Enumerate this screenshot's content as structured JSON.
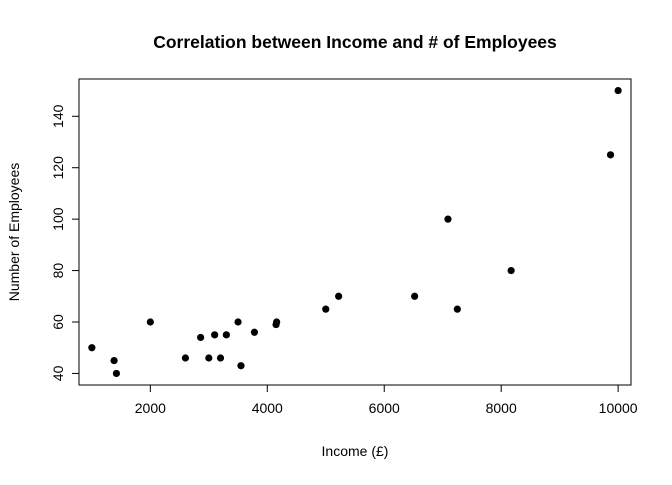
{
  "chart_data": {
    "type": "scatter",
    "title": "Correlation between Income and # of Employees",
    "xlabel": "Income (£)",
    "ylabel": "Number of Employees",
    "xlim": [
      780,
      10220
    ],
    "ylim": [
      35.5,
      154.5
    ],
    "xticks": [
      2000,
      4000,
      6000,
      8000,
      10000
    ],
    "yticks": [
      40,
      60,
      80,
      100,
      120,
      140
    ],
    "grid": false,
    "point_color": "#000000",
    "points": [
      {
        "x": 1000,
        "y": 50
      },
      {
        "x": 1380,
        "y": 45
      },
      {
        "x": 1420,
        "y": 40
      },
      {
        "x": 2000,
        "y": 60
      },
      {
        "x": 2600,
        "y": 46
      },
      {
        "x": 2860,
        "y": 54
      },
      {
        "x": 3000,
        "y": 46
      },
      {
        "x": 3100,
        "y": 55
      },
      {
        "x": 3200,
        "y": 46
      },
      {
        "x": 3300,
        "y": 55
      },
      {
        "x": 3500,
        "y": 60
      },
      {
        "x": 3550,
        "y": 43
      },
      {
        "x": 3780,
        "y": 56
      },
      {
        "x": 4150,
        "y": 59
      },
      {
        "x": 4160,
        "y": 60
      },
      {
        "x": 5000,
        "y": 65
      },
      {
        "x": 5220,
        "y": 70
      },
      {
        "x": 6520,
        "y": 70
      },
      {
        "x": 7090,
        "y": 100
      },
      {
        "x": 7250,
        "y": 65
      },
      {
        "x": 8170,
        "y": 80
      },
      {
        "x": 9870,
        "y": 125
      },
      {
        "x": 10000,
        "y": 150
      }
    ]
  }
}
